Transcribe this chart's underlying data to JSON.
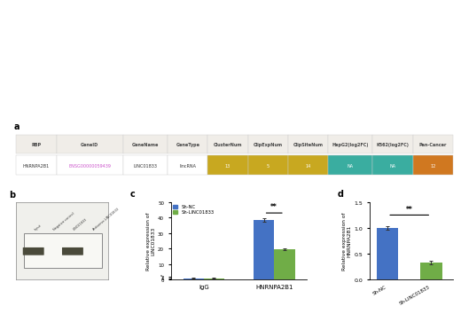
{
  "table": {
    "headers": [
      "RBP",
      "GeneID",
      "GeneName",
      "GeneType",
      "ClusterNum",
      "ClipExpNum",
      "ClipSiteNum",
      "HepG2(log2FC)",
      "K562(log2FC)",
      "Pan-Cancer"
    ],
    "row": [
      "HNRNPA2B1",
      "ENSG00000059439",
      "LINC01833",
      "lincRNA",
      "13",
      "5",
      "14",
      "NA",
      "NA",
      "12"
    ],
    "col_widths": [
      0.09,
      0.15,
      0.1,
      0.09,
      0.09,
      0.09,
      0.09,
      0.1,
      0.09,
      0.09
    ],
    "header_bg": "#f0ede8",
    "row_bg_default": "#ffffff",
    "geneid_color": "#cc55cc",
    "cell_colors": [
      "#ffffff",
      "#ffffff",
      "#ffffff",
      "#ffffff",
      "#c8a820",
      "#c8a820",
      "#c8a820",
      "#3aada0",
      "#3aada0",
      "#d07820"
    ],
    "cell_text_colors": [
      "#333333",
      "#cc55cc",
      "#333333",
      "#333333",
      "#ffffff",
      "#ffffff",
      "#ffffff",
      "#ffffff",
      "#ffffff",
      "#ffffff"
    ],
    "header_divider_color": "#cccccc",
    "border_color": "#cccccc"
  },
  "panel_c": {
    "groups": [
      "IgG",
      "HNRNPA2B1"
    ],
    "sh_nc_values": [
      1.0,
      38.5
    ],
    "sh_linc_values": [
      1.0,
      19.5
    ],
    "sh_nc_errors": [
      0.08,
      1.0
    ],
    "sh_linc_errors": [
      0.08,
      0.7
    ],
    "color_nc": "#4472C4",
    "color_linc": "#70AD47",
    "ylabel": "Relative expression of\nLINC01833",
    "ylim": [
      0,
      50
    ],
    "yticks": [
      0,
      1,
      2,
      10,
      20,
      30,
      40,
      50
    ],
    "ytick_labels": [
      "0",
      "1",
      "2",
      "10",
      "20",
      "30",
      "40",
      "50"
    ],
    "significance": "**",
    "legend_nc": "Sh-NC",
    "legend_linc": "Sh-LINC01833"
  },
  "panel_d": {
    "categories": [
      "Sh-NC",
      "Sh-LINC01833"
    ],
    "values": [
      1.0,
      0.33
    ],
    "errors": [
      0.04,
      0.03
    ],
    "color_nc": "#4472C4",
    "color_linc": "#70AD47",
    "ylabel": "Relative expression of\nHNRNPA2B1",
    "ylim": [
      0.0,
      1.5
    ],
    "yticks": [
      0.0,
      0.5,
      1.0,
      1.5
    ],
    "ytick_labels": [
      "0.0",
      "0.5",
      "1.0",
      "1.5"
    ],
    "significance": "**"
  },
  "label_a": "a",
  "label_b": "b",
  "label_c": "c",
  "label_d": "d",
  "bg_color": "#ffffff"
}
